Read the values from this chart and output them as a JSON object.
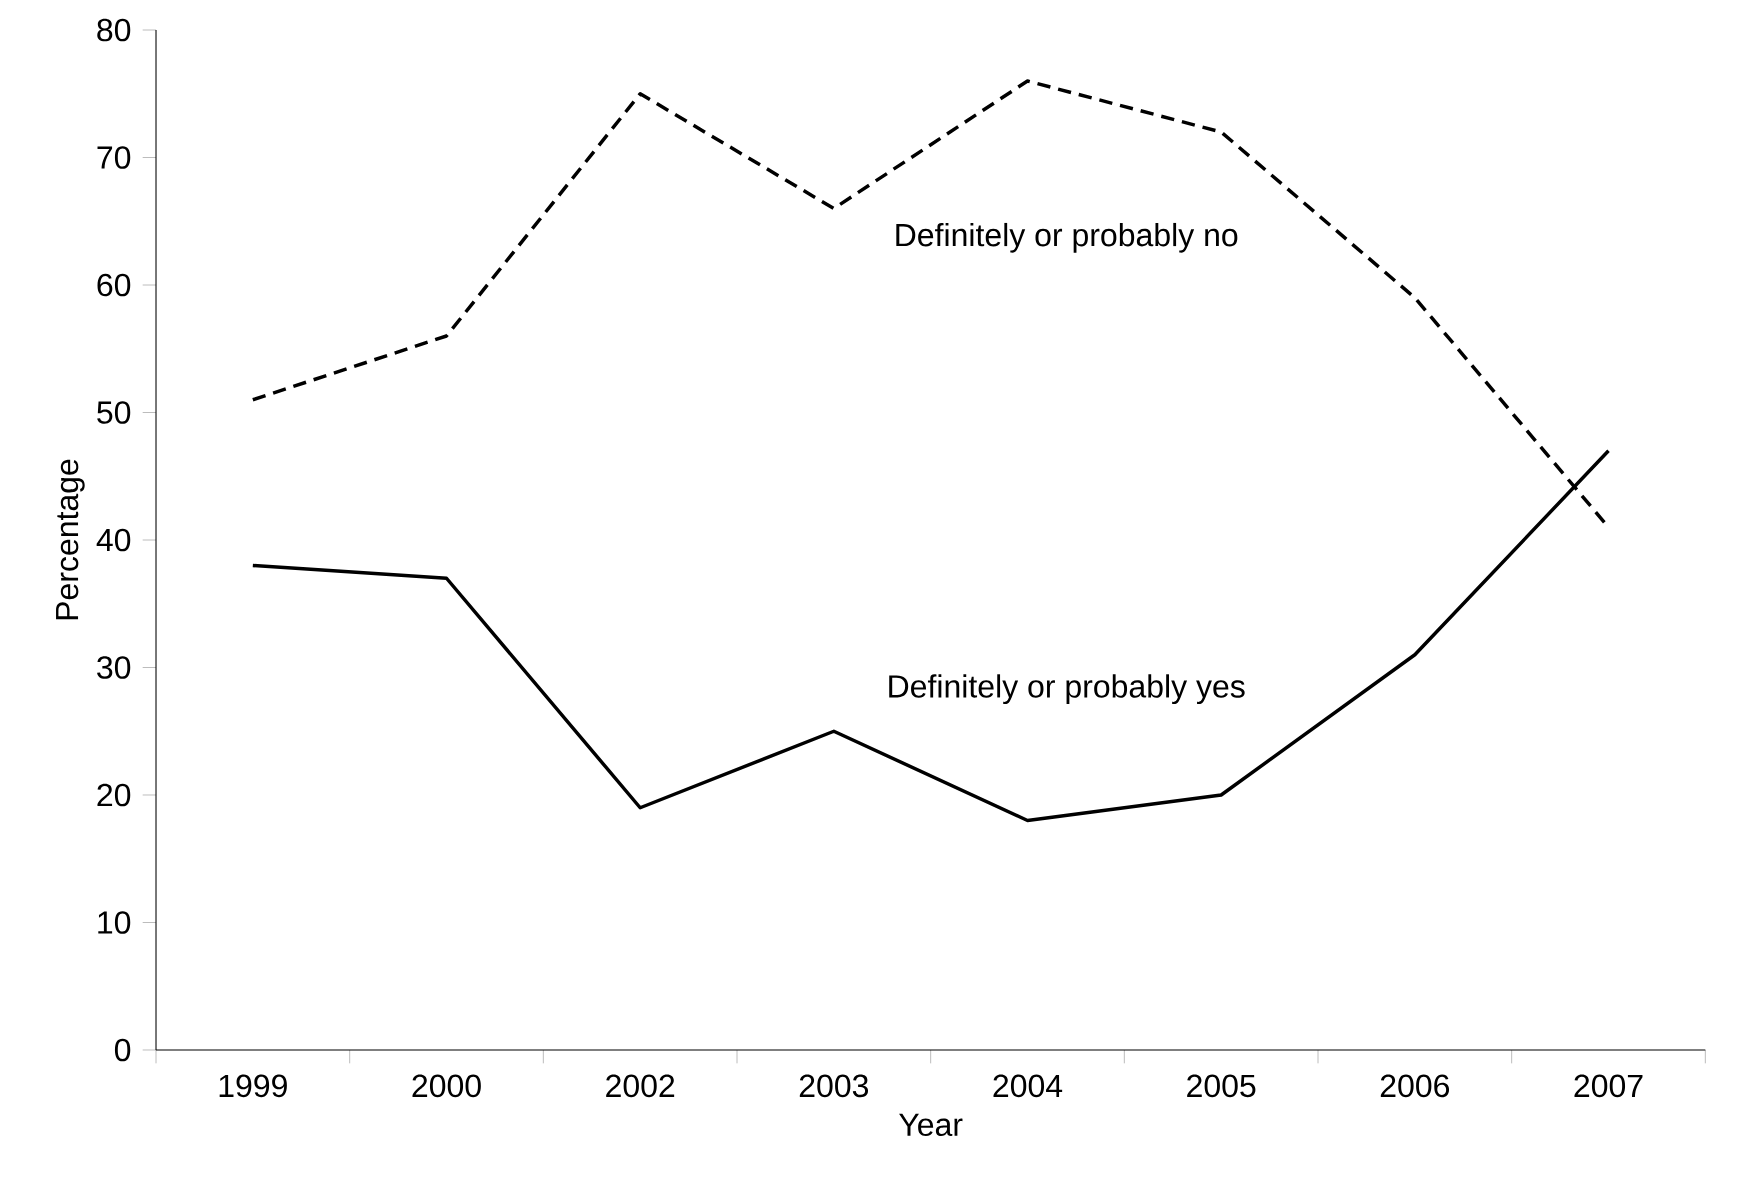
{
  "chart_data": {
    "type": "line",
    "xlabel": "Year",
    "ylabel": "Percentage",
    "categories": [
      "1999",
      "2000",
      "2002",
      "2003",
      "2004",
      "2005",
      "2006",
      "2007"
    ],
    "ylim": [
      0,
      80
    ],
    "yticks": [
      0,
      10,
      20,
      30,
      40,
      50,
      60,
      70,
      80
    ],
    "grid": false,
    "marker": "none",
    "series": [
      {
        "name": "Definitely or probably no",
        "color": "#000000",
        "line_style": "dashed",
        "values": [
          51,
          56,
          75,
          66,
          76,
          72,
          59,
          41
        ]
      },
      {
        "name": "Definitely or probably yes",
        "color": "#000000",
        "line_style": "solid",
        "values": [
          38,
          37,
          19,
          25,
          18,
          20,
          31,
          47
        ]
      }
    ]
  }
}
